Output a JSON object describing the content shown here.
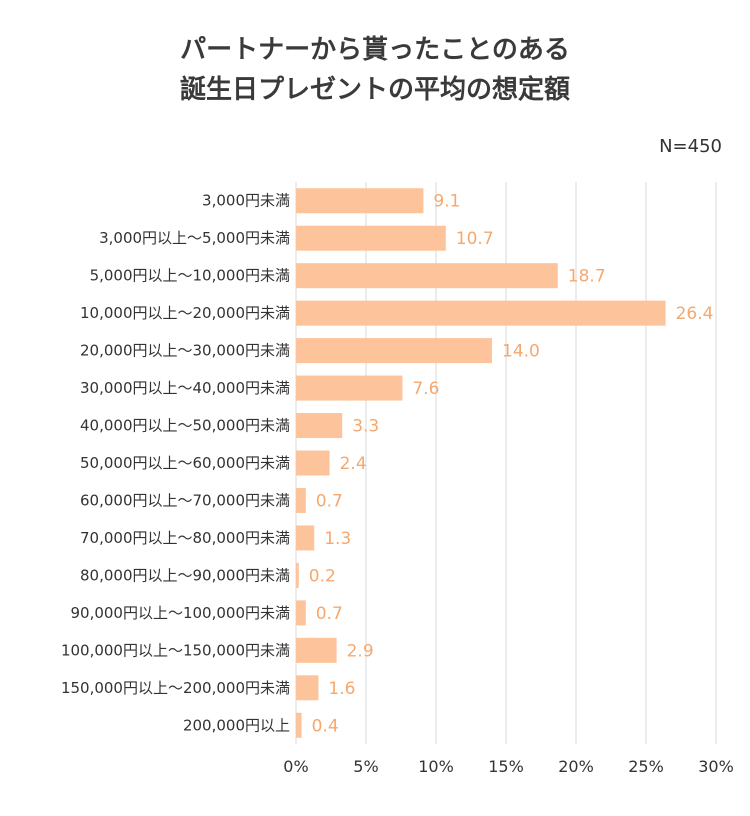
{
  "header": {
    "title_line1": "パートナーから貰ったことのある",
    "title_line2": "誕生日プレゼントの平均の想定額",
    "sample_size": "N=450"
  },
  "colors": {
    "bar": "#fdc39a",
    "value_label": "#f5a86e",
    "grid": "#d9d9d9",
    "text": "#333333"
  },
  "chart_data": {
    "type": "bar",
    "orientation": "horizontal",
    "title": "パートナーから貰ったことのある誕生日プレゼントの平均の想定額",
    "categories": [
      "3,000円未満",
      "3,000円以上～5,000円未満",
      "5,000円以上～10,000円未満",
      "10,000円以上～20,000円未満",
      "20,000円以上～30,000円未満",
      "30,000円以上～40,000円未満",
      "40,000円以上～50,000円未満",
      "50,000円以上～60,000円未満",
      "60,000円以上～70,000円未満",
      "70,000円以上～80,000円未満",
      "80,000円以上～90,000円未満",
      "90,000円以上～100,000円未満",
      "100,000円以上～150,000円未満",
      "150,000円以上～200,000円未満",
      "200,000円以上"
    ],
    "values": [
      9.1,
      10.7,
      18.7,
      26.4,
      14.0,
      7.6,
      3.3,
      2.4,
      0.7,
      1.3,
      0.2,
      0.7,
      2.9,
      1.6,
      0.4
    ],
    "value_labels": [
      "9.1",
      "10.7",
      "18.7",
      "26.4",
      "14.0",
      "7.6",
      "3.3",
      "2.4",
      "0.7",
      "1.3",
      "0.2",
      "0.7",
      "2.9",
      "1.6",
      "0.4"
    ],
    "xlim": [
      0,
      30
    ],
    "xticks": [
      0,
      5,
      10,
      15,
      20,
      25,
      30
    ],
    "xtick_labels": [
      "0%",
      "5%",
      "10%",
      "15%",
      "20%",
      "25%",
      "30%"
    ],
    "grid": true,
    "xlabel": "",
    "ylabel": ""
  }
}
